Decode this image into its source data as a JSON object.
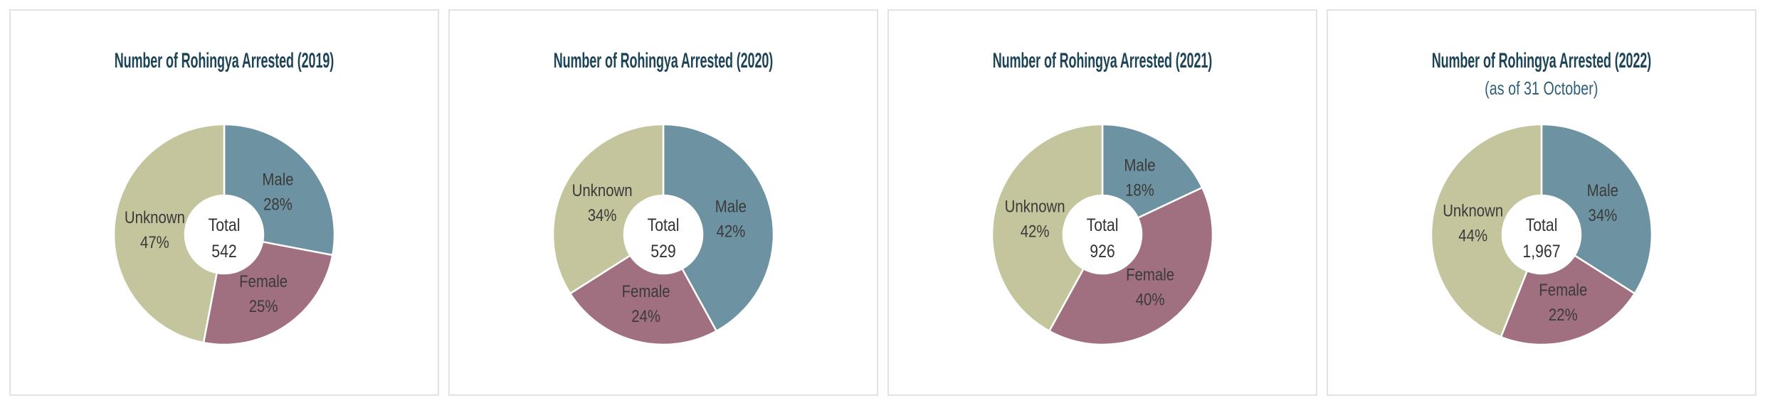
{
  "page": {
    "background_color": "#ffffff",
    "card_border_color": "#e2e2e2",
    "title_color": "#1d4456",
    "subtitle_color": "#2e607a",
    "label_text_color": "#3a3a3a",
    "center_text_color": "#333333",
    "slice_divider_color": "#ffffff"
  },
  "chart_data": [
    {
      "type": "pie",
      "title": "Number of Rohingya Arrested (2019)",
      "subtitle": "",
      "center_label": "Total",
      "total": "542",
      "categories": [
        "Male",
        "Female",
        "Unknown"
      ],
      "values": [
        28,
        25,
        47
      ],
      "values_unit": "percent",
      "colors": [
        "#6d92a1",
        "#a17080",
        "#c4c59d"
      ],
      "donut": true,
      "hole_ratio": 0.355,
      "start_angle_deg": 0,
      "direction": "clockwise",
      "legend": "none",
      "labels_inside_slices": true
    },
    {
      "type": "pie",
      "title": "Number of Rohingya Arrested (2020)",
      "subtitle": "",
      "center_label": "Total",
      "total": "529",
      "categories": [
        "Male",
        "Female",
        "Unknown"
      ],
      "values": [
        42,
        24,
        34
      ],
      "values_unit": "percent",
      "colors": [
        "#6d92a1",
        "#a17080",
        "#c4c59d"
      ],
      "donut": true,
      "hole_ratio": 0.355,
      "start_angle_deg": 0,
      "direction": "clockwise",
      "legend": "none",
      "labels_inside_slices": true
    },
    {
      "type": "pie",
      "title": "Number of Rohingya Arrested (2021)",
      "subtitle": "",
      "center_label": "Total",
      "total": "926",
      "categories": [
        "Male",
        "Female",
        "Unknown"
      ],
      "values": [
        18,
        40,
        42
      ],
      "values_unit": "percent",
      "colors": [
        "#6d92a1",
        "#a17080",
        "#c4c59d"
      ],
      "donut": true,
      "hole_ratio": 0.355,
      "start_angle_deg": 0,
      "direction": "clockwise",
      "legend": "none",
      "labels_inside_slices": true
    },
    {
      "type": "pie",
      "title": "Number of Rohingya Arrested (2022)",
      "subtitle": "(as of 31 October)",
      "center_label": "Total",
      "total": "1,967",
      "categories": [
        "Male",
        "Female",
        "Unknown"
      ],
      "values": [
        34,
        22,
        44
      ],
      "values_unit": "percent",
      "colors": [
        "#6d92a1",
        "#a17080",
        "#c4c59d"
      ],
      "donut": true,
      "hole_ratio": 0.355,
      "start_angle_deg": 0,
      "direction": "clockwise",
      "legend": "none",
      "labels_inside_slices": true
    }
  ]
}
